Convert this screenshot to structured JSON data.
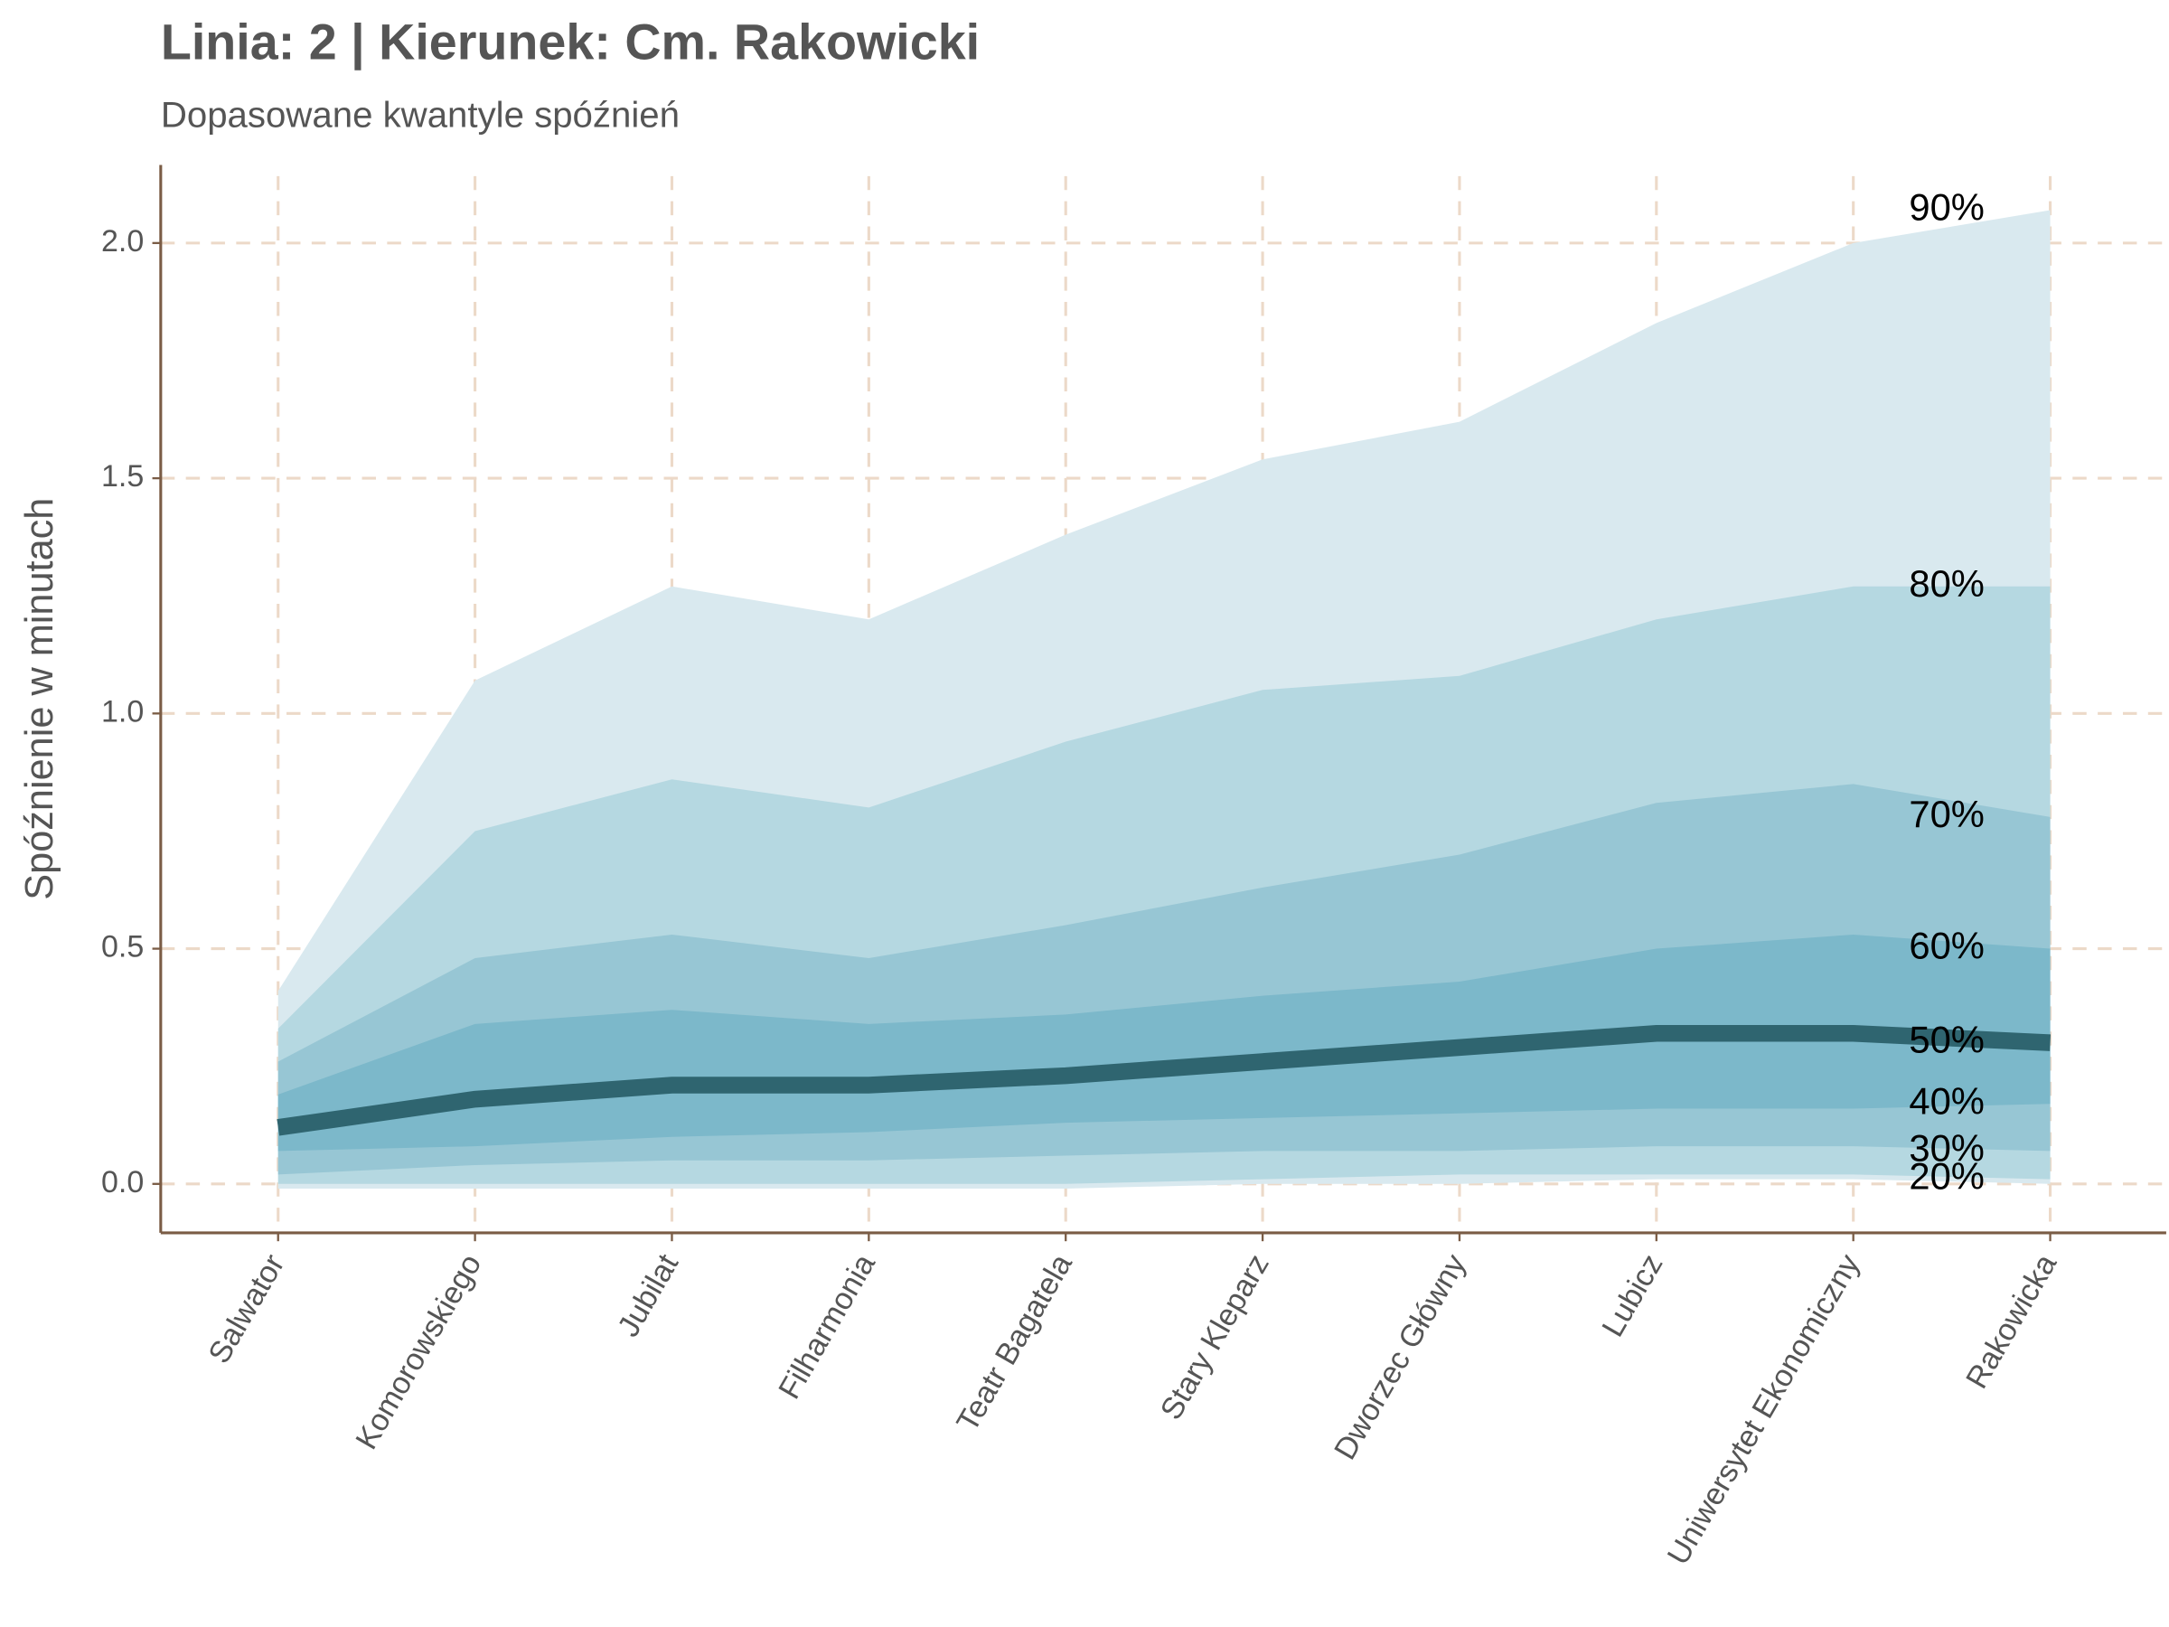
{
  "chart_data": {
    "type": "quantile-bands",
    "title": "Linia: 2 | Kierunek: Cm. Rakowicki",
    "subtitle": "Dopasowane kwantyle spóźnień",
    "y_label": "Spóźnienie w minutach",
    "categories": [
      "Salwator",
      "Komorowskiego",
      "Jubilat",
      "Filharmonia",
      "Teatr Bagatela",
      "Stary Kleparz",
      "Dworzec Główny",
      "Lubicz",
      "Uniwersytet Ekonomiczny",
      "Rakowicka"
    ],
    "series": [
      {
        "name": "90%",
        "color": "#d9e9ef",
        "values": [
          0.41,
          1.07,
          1.27,
          1.2,
          1.38,
          1.54,
          1.62,
          1.83,
          2.0,
          2.07
        ]
      },
      {
        "name": "80%",
        "color": "#b5d8e1",
        "values": [
          0.33,
          0.75,
          0.86,
          0.8,
          0.94,
          1.05,
          1.08,
          1.2,
          1.27,
          1.27
        ]
      },
      {
        "name": "70%",
        "color": "#97c6d4",
        "values": [
          0.26,
          0.48,
          0.53,
          0.48,
          0.55,
          0.63,
          0.7,
          0.81,
          0.85,
          0.78
        ]
      },
      {
        "name": "60%",
        "color": "#7cb8ca",
        "values": [
          0.19,
          0.34,
          0.37,
          0.34,
          0.36,
          0.4,
          0.43,
          0.5,
          0.53,
          0.5
        ]
      },
      {
        "name": "50%",
        "color": "#2f6570",
        "values": [
          0.12,
          0.18,
          0.21,
          0.21,
          0.23,
          0.26,
          0.29,
          0.32,
          0.32,
          0.3
        ]
      },
      {
        "name": "40%",
        "values": [
          0.07,
          0.08,
          0.1,
          0.11,
          0.13,
          0.14,
          0.15,
          0.16,
          0.16,
          0.17
        ]
      },
      {
        "name": "30%",
        "values": [
          0.02,
          0.04,
          0.05,
          0.05,
          0.06,
          0.07,
          0.07,
          0.08,
          0.08,
          0.07
        ]
      },
      {
        "name": "20%",
        "values": [
          0.0,
          0.0,
          0.0,
          0.0,
          0.0,
          0.01,
          0.02,
          0.02,
          0.02,
          0.01
        ]
      },
      {
        "values": [
          -0.01,
          -0.01,
          -0.01,
          -0.01,
          -0.01,
          0.0,
          0.0,
          0.01,
          0.01,
          0.0
        ]
      }
    ],
    "ylim": [
      -0.104,
      2.166
    ],
    "yticks": [
      {
        "value": 0,
        "label": "0.0"
      },
      0.5,
      {
        "value": 1,
        "label": "1.0"
      },
      1.5,
      {
        "value": 2,
        "label": "2.0"
      }
    ],
    "grid": true
  }
}
